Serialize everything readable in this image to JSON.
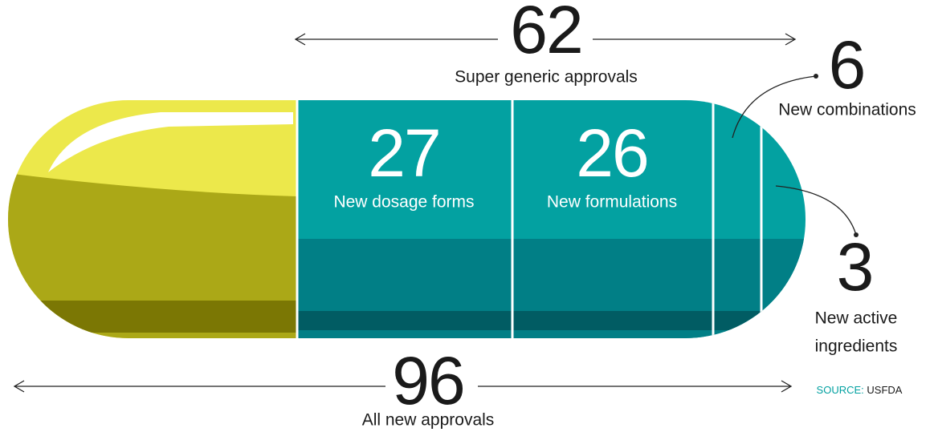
{
  "top": {
    "value": "62",
    "label": "Super generic approvals"
  },
  "segments": [
    {
      "value": "27",
      "label": "New dosage forms"
    },
    {
      "value": "26",
      "label": "New formulations"
    },
    {
      "value": "6",
      "label": "New combinations"
    },
    {
      "value": "3",
      "label_lines": [
        "New active",
        "ingredients"
      ]
    }
  ],
  "bottom": {
    "value": "96",
    "label": "All new approvals"
  },
  "source": {
    "label": "SOURCE:",
    "value": "USFDA"
  }
}
